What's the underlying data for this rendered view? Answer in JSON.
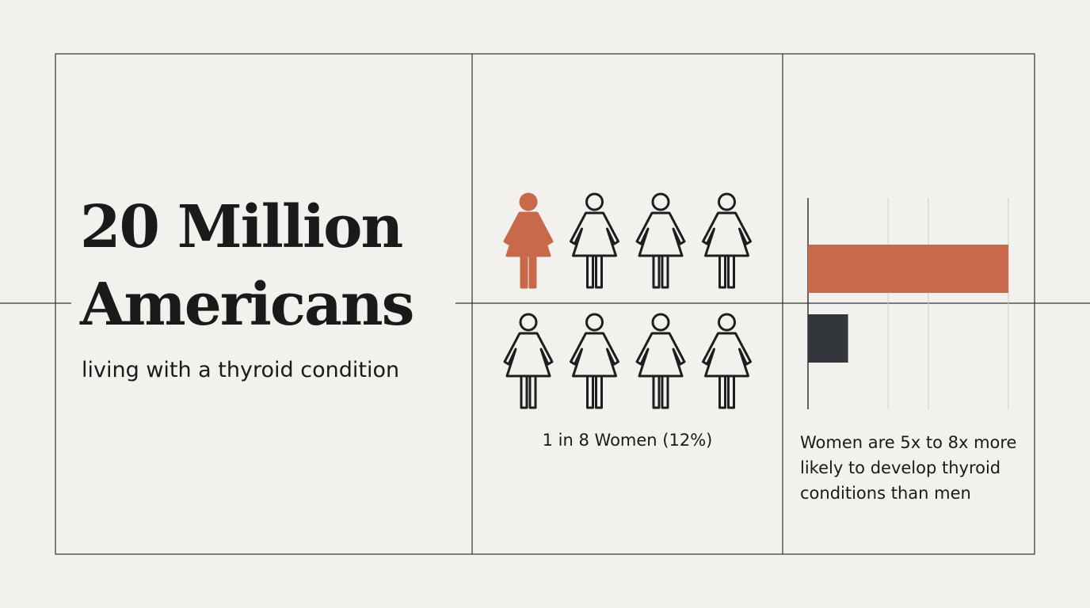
{
  "headline": {
    "title_lines": [
      "20 Million",
      "Americans"
    ],
    "subtitle": "living with a thyroid condition"
  },
  "pictogram": {
    "total": 8,
    "highlighted": 1,
    "highlight_color": "#c8694a",
    "outline_color": "#1e1e1e",
    "caption": "1 in 8 Women (12%)"
  },
  "chart_data": {
    "type": "bar",
    "orientation": "horizontal",
    "values": [
      5,
      1
    ],
    "colors": [
      "#c8694a",
      "#33373b"
    ],
    "xlim": [
      0,
      5
    ],
    "xticks": [
      0,
      2,
      3,
      5
    ],
    "grid": true,
    "caption": "Women are 5x to 8x more likely to develop thyroid conditions than men"
  }
}
